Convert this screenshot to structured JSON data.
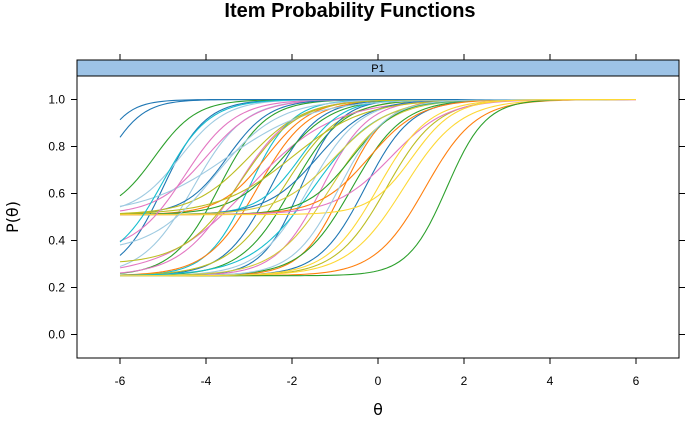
{
  "chart_data": {
    "type": "line",
    "title": "Item Probability Functions",
    "panel_label": "P1",
    "xlabel": "θ",
    "ylabel": "P(θ)",
    "xlim": [
      -7,
      7
    ],
    "ylim": [
      -0.1,
      1.1
    ],
    "x_ticks": [
      -6,
      -4,
      -2,
      0,
      2,
      4,
      6
    ],
    "y_ticks": [
      0.0,
      0.2,
      0.4,
      0.6,
      0.8,
      1.0
    ],
    "x_tick_labels": [
      "-6",
      "-4",
      "-2",
      "0",
      "2",
      "4",
      "6"
    ],
    "y_tick_labels": [
      "0.0",
      "0.2",
      "0.4",
      "0.6",
      "0.8",
      "1.0"
    ],
    "theta_range": [
      -6,
      6
    ],
    "grid": false,
    "strip_color": "#9DC3E6",
    "series": [
      {
        "a": 1.2,
        "b": -5.0,
        "c": 0.25,
        "color": "#1f77b4"
      },
      {
        "a": 1.0,
        "b": -4.3,
        "c": 0.25,
        "color": "#9ecae1"
      },
      {
        "a": 1.1,
        "b": -3.7,
        "c": 0.25,
        "color": "#2ca02c"
      },
      {
        "a": 0.9,
        "b": -3.3,
        "c": 0.25,
        "color": "#e377c2"
      },
      {
        "a": 1.2,
        "b": -3.0,
        "c": 0.25,
        "color": "#17becf"
      },
      {
        "a": 1.0,
        "b": -2.8,
        "c": 0.25,
        "color": "#ff7f0e"
      },
      {
        "a": 1.1,
        "b": -2.5,
        "c": 0.25,
        "color": "#1f77b4"
      },
      {
        "a": 0.9,
        "b": -2.2,
        "c": 0.25,
        "color": "#bcbd22"
      },
      {
        "a": 1.0,
        "b": -2.0,
        "c": 0.25,
        "color": "#2ca02c"
      },
      {
        "a": 1.3,
        "b": -1.8,
        "c": 0.25,
        "color": "#1f77b4"
      },
      {
        "a": 1.0,
        "b": -1.6,
        "c": 0.25,
        "color": "#9ecae1"
      },
      {
        "a": 1.1,
        "b": -1.3,
        "c": 0.25,
        "color": "#e377c2"
      },
      {
        "a": 0.9,
        "b": -1.1,
        "c": 0.25,
        "color": "#d4c93a"
      },
      {
        "a": 1.2,
        "b": -0.8,
        "c": 0.25,
        "color": "#ff7f0e"
      },
      {
        "a": 1.0,
        "b": -0.6,
        "c": 0.25,
        "color": "#2ca02c"
      },
      {
        "a": 1.1,
        "b": -0.3,
        "c": 0.25,
        "color": "#1f77b4"
      },
      {
        "a": 1.0,
        "b": 0.2,
        "c": 0.25,
        "color": "#bcbd22"
      },
      {
        "a": 0.9,
        "b": 0.6,
        "c": 0.25,
        "color": "#fdd835"
      },
      {
        "a": 1.0,
        "b": 1.1,
        "c": 0.25,
        "color": "#ff7f0e"
      },
      {
        "a": 1.3,
        "b": 1.6,
        "c": 0.25,
        "color": "#2ca02c"
      },
      {
        "a": 0.6,
        "b": -3.0,
        "c": 0.25,
        "color": "#e377c2"
      },
      {
        "a": 0.8,
        "b": -1.5,
        "c": 0.25,
        "color": "#17becf"
      },
      {
        "a": 1.4,
        "b": -6.3,
        "c": 0.51,
        "color": "#1f77b4"
      },
      {
        "a": 1.2,
        "b": -5.2,
        "c": 0.51,
        "color": "#2ca02c"
      },
      {
        "a": 1.1,
        "b": -4.6,
        "c": 0.51,
        "color": "#9ecae1"
      },
      {
        "a": 1.0,
        "b": -4.0,
        "c": 0.51,
        "color": "#e377c2"
      },
      {
        "a": 1.2,
        "b": -3.5,
        "c": 0.51,
        "color": "#1f77b4"
      },
      {
        "a": 0.9,
        "b": -3.0,
        "c": 0.51,
        "color": "#bcbd22"
      },
      {
        "a": 1.1,
        "b": -2.6,
        "c": 0.51,
        "color": "#ff7f0e"
      },
      {
        "a": 1.0,
        "b": -2.2,
        "c": 0.51,
        "color": "#2ca02c"
      },
      {
        "a": 1.2,
        "b": -1.8,
        "c": 0.51,
        "color": "#17becf"
      },
      {
        "a": 1.0,
        "b": -1.4,
        "c": 0.51,
        "color": "#1f77b4"
      },
      {
        "a": 0.9,
        "b": -1.0,
        "c": 0.51,
        "color": "#d4c93a"
      },
      {
        "a": 1.1,
        "b": -0.6,
        "c": 0.51,
        "color": "#2ca02c"
      },
      {
        "a": 1.0,
        "b": -0.2,
        "c": 0.51,
        "color": "#ff7f0e"
      },
      {
        "a": 0.9,
        "b": 0.3,
        "c": 0.51,
        "color": "#e377c2"
      },
      {
        "a": 1.2,
        "b": 0.8,
        "c": 0.51,
        "color": "#fdd835"
      },
      {
        "a": 0.6,
        "b": -3.5,
        "c": 0.51,
        "color": "#9ecae1"
      },
      {
        "a": 0.7,
        "b": -2.0,
        "c": 0.51,
        "color": "#bcbd22"
      },
      {
        "a": 1.0,
        "b": -4.5,
        "c": 0.35,
        "color": "#e377c2"
      },
      {
        "a": 0.8,
        "b": -3.8,
        "c": 0.35,
        "color": "#9ecae1"
      },
      {
        "a": 1.1,
        "b": -5.0,
        "c": 0.3,
        "color": "#17becf"
      },
      {
        "a": 0.9,
        "b": -3.2,
        "c": 0.3,
        "color": "#bcbd22"
      },
      {
        "a": 1.5,
        "b": -6.8,
        "c": 0.25,
        "color": "#1f77b4"
      },
      {
        "a": 1.1,
        "b": -0.9,
        "c": 0.25,
        "color": "#9ecae1"
      },
      {
        "a": 1.0,
        "b": 0.0,
        "c": 0.25,
        "color": "#fdd835"
      }
    ]
  }
}
